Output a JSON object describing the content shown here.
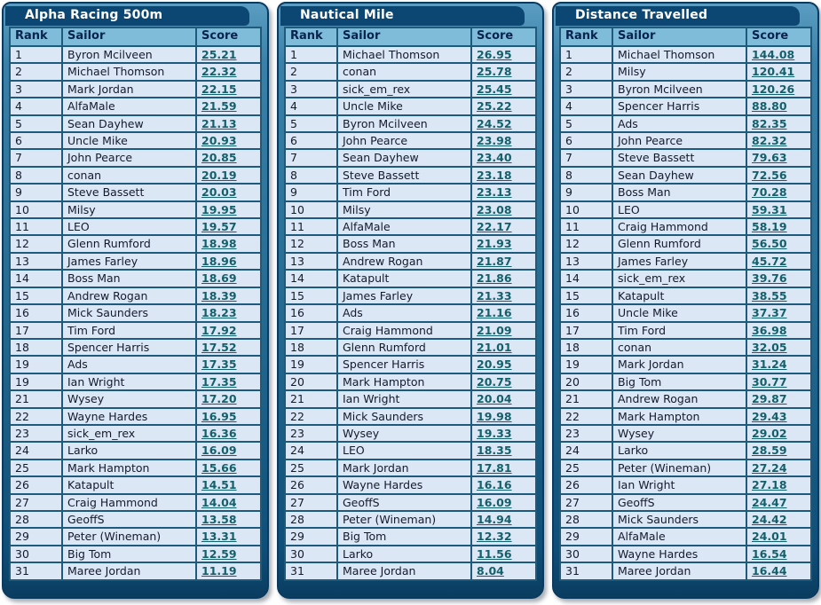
{
  "colors": {
    "frame_top": "#5b9dc2",
    "frame_bottom": "#0f4e78",
    "frame_border": "#0b3a5e",
    "title_bg": "#0c4672",
    "title_text": "#ffffff",
    "header_bg": "#7ebcda",
    "header_text": "#07234e",
    "cell_bg": "#dce7f6",
    "grid_line": "#1e5a7c",
    "cell_text": "#131a2c",
    "score_link": "#14606a"
  },
  "columns": [
    "Rank",
    "Sailor",
    "Score"
  ],
  "panels": [
    {
      "title": "Alpha Racing 500m",
      "rows": [
        [
          "1",
          "Byron Mcilveen",
          "25.21"
        ],
        [
          "2",
          "Michael Thomson",
          "22.32"
        ],
        [
          "3",
          "Mark Jordan",
          "22.15"
        ],
        [
          "4",
          "AlfaMale",
          "21.59"
        ],
        [
          "5",
          "Sean Dayhew",
          "21.13"
        ],
        [
          "6",
          "Uncle Mike",
          "20.93"
        ],
        [
          "7",
          "John Pearce",
          "20.85"
        ],
        [
          "8",
          "conan",
          "20.19"
        ],
        [
          "9",
          "Steve Bassett",
          "20.03"
        ],
        [
          "10",
          "Milsy",
          "19.95"
        ],
        [
          "11",
          "LEO",
          "19.57"
        ],
        [
          "12",
          "Glenn Rumford",
          "18.98"
        ],
        [
          "13",
          "James Farley",
          "18.96"
        ],
        [
          "14",
          "Boss Man",
          "18.69"
        ],
        [
          "15",
          "Andrew Rogan",
          "18.39"
        ],
        [
          "16",
          "Mick Saunders",
          "18.23"
        ],
        [
          "17",
          "Tim Ford",
          "17.92"
        ],
        [
          "18",
          "Spencer Harris",
          "17.52"
        ],
        [
          "19",
          "Ads",
          "17.35"
        ],
        [
          "19",
          "Ian Wright",
          "17.35"
        ],
        [
          "21",
          "Wysey",
          "17.20"
        ],
        [
          "22",
          "Wayne Hardes",
          "16.95"
        ],
        [
          "23",
          "sick_em_rex",
          "16.36"
        ],
        [
          "24",
          "Larko",
          "16.09"
        ],
        [
          "25",
          "Mark Hampton",
          "15.66"
        ],
        [
          "26",
          "Katapult",
          "14.51"
        ],
        [
          "27",
          "Craig Hammond",
          "14.04"
        ],
        [
          "28",
          "GeoffS",
          "13.58"
        ],
        [
          "29",
          "Peter (Wineman)",
          "13.31"
        ],
        [
          "30",
          "Big Tom",
          "12.59"
        ],
        [
          "31",
          "Maree Jordan",
          "11.19"
        ]
      ]
    },
    {
      "title": "Nautical Mile",
      "rows": [
        [
          "1",
          "Michael Thomson",
          "26.95"
        ],
        [
          "2",
          "conan",
          "25.78"
        ],
        [
          "3",
          "sick_em_rex",
          "25.45"
        ],
        [
          "4",
          "Uncle Mike",
          "25.22"
        ],
        [
          "5",
          "Byron Mcilveen",
          "24.52"
        ],
        [
          "6",
          "John Pearce",
          "23.98"
        ],
        [
          "7",
          "Sean Dayhew",
          "23.40"
        ],
        [
          "8",
          "Steve Bassett",
          "23.18"
        ],
        [
          "9",
          "Tim Ford",
          "23.13"
        ],
        [
          "10",
          "Milsy",
          "23.08"
        ],
        [
          "11",
          "AlfaMale",
          "22.17"
        ],
        [
          "12",
          "Boss Man",
          "21.93"
        ],
        [
          "13",
          "Andrew Rogan",
          "21.87"
        ],
        [
          "14",
          "Katapult",
          "21.86"
        ],
        [
          "15",
          "James Farley",
          "21.33"
        ],
        [
          "16",
          "Ads",
          "21.16"
        ],
        [
          "17",
          "Craig Hammond",
          "21.09"
        ],
        [
          "18",
          "Glenn Rumford",
          "21.01"
        ],
        [
          "19",
          "Spencer Harris",
          "20.95"
        ],
        [
          "20",
          "Mark Hampton",
          "20.75"
        ],
        [
          "21",
          "Ian Wright",
          "20.04"
        ],
        [
          "22",
          "Mick Saunders",
          "19.98"
        ],
        [
          "23",
          "Wysey",
          "19.33"
        ],
        [
          "24",
          "LEO",
          "18.35"
        ],
        [
          "25",
          "Mark Jordan",
          "17.81"
        ],
        [
          "26",
          "Wayne Hardes",
          "16.16"
        ],
        [
          "27",
          "GeoffS",
          "16.09"
        ],
        [
          "28",
          "Peter (Wineman)",
          "14.94"
        ],
        [
          "29",
          "Big Tom",
          "12.32"
        ],
        [
          "30",
          "Larko",
          "11.56"
        ],
        [
          "31",
          "Maree Jordan",
          "8.04"
        ]
      ]
    },
    {
      "title": "Distance Travelled",
      "rows": [
        [
          "1",
          "Michael Thomson",
          "144.08"
        ],
        [
          "2",
          "Milsy",
          "120.41"
        ],
        [
          "3",
          "Byron Mcilveen",
          "120.26"
        ],
        [
          "4",
          "Spencer Harris",
          "88.80"
        ],
        [
          "5",
          "Ads",
          "82.35"
        ],
        [
          "6",
          "John Pearce",
          "82.32"
        ],
        [
          "7",
          "Steve Bassett",
          "79.63"
        ],
        [
          "8",
          "Sean Dayhew",
          "72.56"
        ],
        [
          "9",
          "Boss Man",
          "70.28"
        ],
        [
          "10",
          "LEO",
          "59.31"
        ],
        [
          "11",
          "Craig Hammond",
          "58.19"
        ],
        [
          "12",
          "Glenn Rumford",
          "56.50"
        ],
        [
          "13",
          "James Farley",
          "45.72"
        ],
        [
          "14",
          "sick_em_rex",
          "39.76"
        ],
        [
          "15",
          "Katapult",
          "38.55"
        ],
        [
          "16",
          "Uncle Mike",
          "37.37"
        ],
        [
          "17",
          "Tim Ford",
          "36.98"
        ],
        [
          "18",
          "conan",
          "32.05"
        ],
        [
          "19",
          "Mark Jordan",
          "31.24"
        ],
        [
          "20",
          "Big Tom",
          "30.77"
        ],
        [
          "21",
          "Andrew Rogan",
          "29.87"
        ],
        [
          "22",
          "Mark Hampton",
          "29.43"
        ],
        [
          "23",
          "Wysey",
          "29.02"
        ],
        [
          "24",
          "Larko",
          "28.59"
        ],
        [
          "25",
          "Peter (Wineman)",
          "27.24"
        ],
        [
          "26",
          "Ian Wright",
          "27.18"
        ],
        [
          "27",
          "GeoffS",
          "24.47"
        ],
        [
          "28",
          "Mick Saunders",
          "24.42"
        ],
        [
          "29",
          "AlfaMale",
          "24.01"
        ],
        [
          "30",
          "Wayne Hardes",
          "16.54"
        ],
        [
          "31",
          "Maree Jordan",
          "16.44"
        ]
      ]
    }
  ]
}
